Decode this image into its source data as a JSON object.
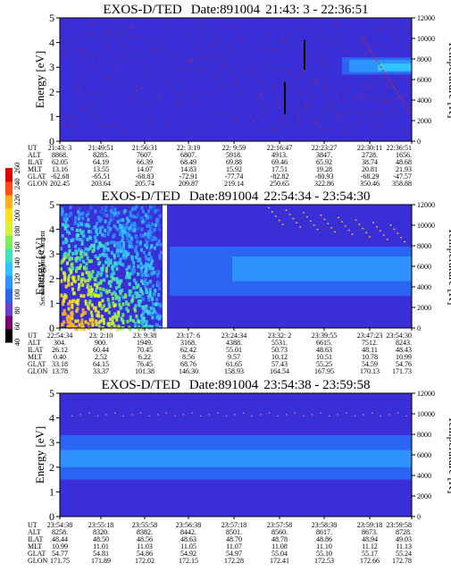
{
  "colors": {
    "background": "#3a2fd6",
    "band_blue": "#2a64f2",
    "band_light": "#2f93ff",
    "band_cyan": "#32c4ff",
    "trace_red": "#d8202a",
    "dropout_white": "#ffffff"
  },
  "colorbar": {
    "label": "Second Harmonic Current",
    "ticks": [
      "40",
      "60",
      "80",
      "100",
      "120",
      "140",
      "160",
      "180",
      "200",
      "220",
      "240",
      "260"
    ]
  },
  "chart_data": [
    {
      "type": "heatmap",
      "title": "EXOS-D/TED",
      "date": "Date:891004",
      "time_range": "21:43: 3 - 22:36:51",
      "ylabel": "Energy [eV]",
      "y2label": "Temperature [K]",
      "ylim": [
        0,
        5
      ],
      "y_ticks": [
        "0",
        "1",
        "2",
        "3",
        "4",
        "5"
      ],
      "y2lim": [
        0,
        12000
      ],
      "y2_ticks": [
        "0",
        "2000",
        "4000",
        "6000",
        "8000",
        "10000",
        "12000"
      ],
      "row_labels": [
        "UT",
        "ALT",
        "ILAT",
        "MLT",
        "GLAT",
        "GLON"
      ],
      "columns": [
        [
          "21:43: 3",
          "8868.",
          "62.05",
          "13.16",
          "-62.68",
          "202.45"
        ],
        [
          "21:49:51",
          "8285.",
          "64.19",
          "13.55",
          "-65.51",
          "203.64"
        ],
        [
          "21:56:31",
          "7607.",
          "66.39",
          "14.07",
          "-68.83",
          "205.74"
        ],
        [
          "22: 3:19",
          "6807.",
          "68.49",
          "14.83",
          "-72.91",
          "209.87"
        ],
        [
          "22: 9:59",
          "5918.",
          "69.88",
          "15.92",
          "-77.74",
          "219.14"
        ],
        [
          "22:16:47",
          "4913.",
          "69.46",
          "17.51",
          "-82.82",
          "250.65"
        ],
        [
          "22:23:27",
          "3847.",
          "65.92",
          "19.28",
          "-80.93",
          "322.86"
        ],
        [
          "22:30:11",
          "2728.",
          "38.74",
          "20.81",
          "-68.29",
          "350.46"
        ],
        [
          "22:36:51",
          "1656.",
          "48.68",
          "21.93",
          "-47.57",
          "358.88"
        ]
      ]
    },
    {
      "type": "heatmap",
      "title": "EXOS-D/TED",
      "date": "Date:891004",
      "time_range": "22:54:34 - 23:54:30",
      "ylabel": "Energy [eV]",
      "y2label": "Temperature [K]",
      "ylim": [
        0,
        5
      ],
      "y_ticks": [
        "0",
        "1",
        "2",
        "3",
        "4",
        "5"
      ],
      "y2lim": [
        0,
        12000
      ],
      "y2_ticks": [
        "0",
        "2000",
        "4000",
        "6000",
        "8000",
        "10000",
        "12000"
      ],
      "row_labels": [
        "UT",
        "ALT",
        "ILAT",
        "MLT",
        "GLAT",
        "GLON"
      ],
      "columns": [
        [
          "22:54:34",
          "304.",
          "26.12",
          "0.40",
          "33.18",
          "13.78"
        ],
        [
          "23: 2:10",
          "900.",
          "60.44",
          "2.52",
          "64.15",
          "33.37"
        ],
        [
          "23: 9:38",
          "1949.",
          "70.45",
          "6.22",
          "76.45",
          "101.38"
        ],
        [
          "23:17: 6",
          "3168.",
          "62.42",
          "8.56",
          "68.76",
          "146.30"
        ],
        [
          "23:24:34",
          "4388.",
          "55.01",
          "9.57",
          "61.65",
          "158.93"
        ],
        [
          "23:32: 2",
          "5531.",
          "50.73",
          "10.12",
          "57.43",
          "164.54"
        ],
        [
          "23:39:55",
          "6615.",
          "48.63",
          "10.51",
          "55.25",
          "167.95"
        ],
        [
          "23:47:23",
          "7512.",
          "48.11",
          "10.78",
          "54.59",
          "170.13"
        ],
        [
          "23:54:30",
          "8243.",
          "48.43",
          "10.99",
          "54.76",
          "171.73"
        ]
      ]
    },
    {
      "type": "heatmap",
      "title": "EXOS-D/TED",
      "date": "Date:891004",
      "time_range": "23:54:38 - 23:59:58",
      "ylabel": "Energy [eV]",
      "y2label": "Temperature [K]",
      "ylim": [
        0,
        5
      ],
      "y_ticks": [
        "0",
        "1",
        "2",
        "3",
        "4",
        "5"
      ],
      "y2lim": [
        0,
        12000
      ],
      "y2_ticks": [
        "0",
        "2000",
        "4000",
        "6000",
        "8000",
        "10000",
        "12000"
      ],
      "row_labels": [
        "UT",
        "ALT",
        "ILAT",
        "MLT",
        "GLAT",
        "GLON"
      ],
      "columns": [
        [
          "23:54:38",
          "8258.",
          "48.44",
          "10.99",
          "54.77",
          "171.75"
        ],
        [
          "23:55:18",
          "8320.",
          "48.50",
          "11.01",
          "54.81",
          "171.89"
        ],
        [
          "23:55:58",
          "8382.",
          "48.56",
          "11.03",
          "54.86",
          "172.02"
        ],
        [
          "23:56:38",
          "8442.",
          "48.63",
          "11.05",
          "54.92",
          "172.15"
        ],
        [
          "23:57:18",
          "8501.",
          "48.70",
          "11.07",
          "54.97",
          "172.28"
        ],
        [
          "23:57:58",
          "8560.",
          "48.78",
          "11.08",
          "55.04",
          "172.41"
        ],
        [
          "23:58:38",
          "8617.",
          "48.86",
          "11.10",
          "55.10",
          "172.53"
        ],
        [
          "23:59:18",
          "8673.",
          "48.94",
          "11.12",
          "55.17",
          "172.66"
        ],
        [
          "23:59:58",
          "8728.",
          "49.03",
          "11.13",
          "55.24",
          "172.78"
        ]
      ]
    }
  ]
}
